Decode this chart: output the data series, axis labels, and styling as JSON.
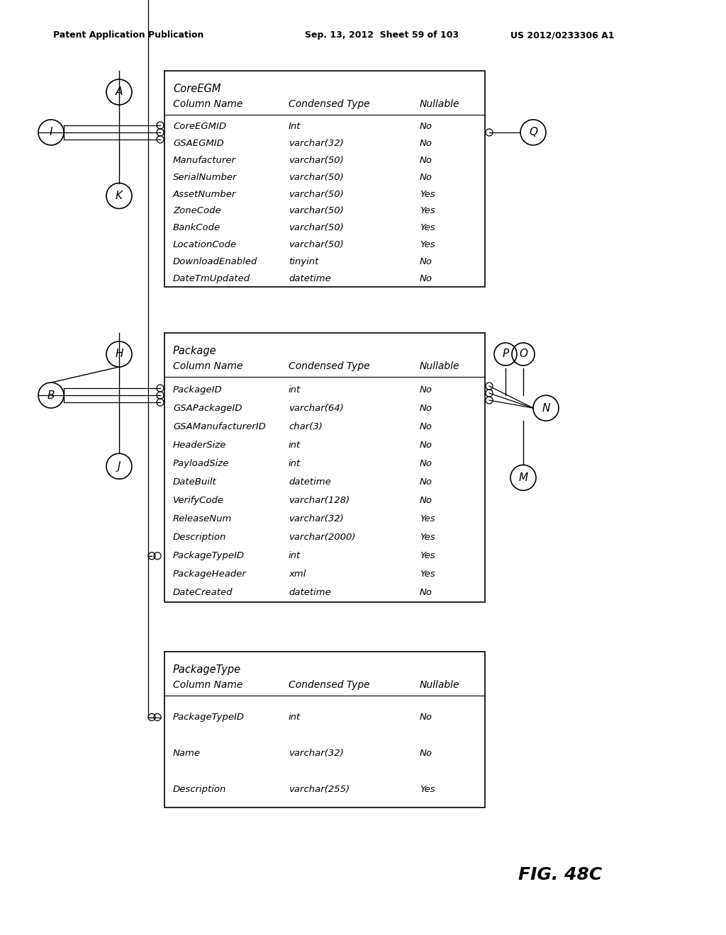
{
  "bg_color": "#ffffff",
  "header_text_left": "Patent Application Publication",
  "header_text_mid": "Sep. 13, 2012  Sheet 59 of 103",
  "header_text_right": "US 2012/0233306 A1",
  "fig_label": "FIG. 48C",
  "table_A": {
    "title": "CoreEGM",
    "header": [
      "Column Name",
      "Condensed Type",
      "Nullable"
    ],
    "rows": [
      [
        "CoreEGMID",
        "Int",
        "No"
      ],
      [
        "GSAEGMID",
        "varchar(32)",
        "No"
      ],
      [
        "Manufacturer",
        "varchar(50)",
        "No"
      ],
      [
        "SerialNumber",
        "varchar(50)",
        "No"
      ],
      [
        "AssetNumber",
        "varchar(50)",
        "Yes"
      ],
      [
        "ZoneCode",
        "varchar(50)",
        "Yes"
      ],
      [
        "BankCode",
        "varchar(50)",
        "Yes"
      ],
      [
        "LocationCode",
        "varchar(50)",
        "Yes"
      ],
      [
        "DownloadEnabled",
        "tinyint",
        "No"
      ],
      [
        "DateTmUpdated",
        "datetime",
        "No"
      ]
    ]
  },
  "table_B": {
    "title": "Package",
    "header": [
      "Column Name",
      "Condensed Type",
      "Nullable"
    ],
    "rows": [
      [
        "PackageID",
        "int",
        "No"
      ],
      [
        "GSAPackageID",
        "varchar(64)",
        "No"
      ],
      [
        "GSAManufacturerID",
        "char(3)",
        "No"
      ],
      [
        "HeaderSize",
        "int",
        "No"
      ],
      [
        "PayloadSize",
        "int",
        "No"
      ],
      [
        "DateBuilt",
        "datetime",
        "No"
      ],
      [
        "VerifyCode",
        "varchar(128)",
        "No"
      ],
      [
        "ReleaseNum",
        "varchar(32)",
        "Yes"
      ],
      [
        "Description",
        "varchar(2000)",
        "Yes"
      ],
      [
        "PackageTypeID",
        "int",
        "Yes"
      ],
      [
        "PackageHeader",
        "xml",
        "Yes"
      ],
      [
        "DateCreated",
        "datetime",
        "No"
      ]
    ]
  },
  "table_C": {
    "title": "PackageType",
    "header": [
      "Column Name",
      "Condensed Type",
      "Nullable"
    ],
    "rows": [
      [
        "PackageTypeID",
        "int",
        "No"
      ],
      [
        "Name",
        "varchar(32)",
        "No"
      ],
      [
        "Description",
        "varchar(255)",
        "Yes"
      ]
    ]
  }
}
